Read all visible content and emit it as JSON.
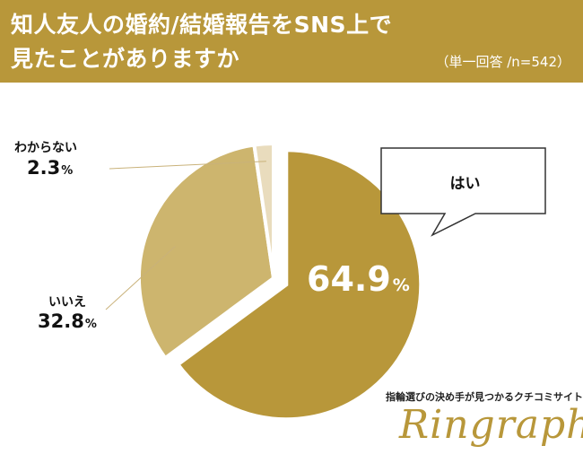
{
  "header": {
    "title_line1": "知人友人の婚約/結婚報告をSNS上で",
    "title_line2": "見たことがありますか",
    "subtitle": "（単一回答 /n=542）"
  },
  "chart_data": {
    "type": "pie",
    "title": "知人友人の婚約/結婚報告をSNS上で見たことがありますか",
    "subtitle": "（単一回答 /n=542）",
    "unit": "%",
    "slices": [
      {
        "label": "はい",
        "value": 64.9,
        "display": "64.9",
        "color": "#b8973a"
      },
      {
        "label": "いいえ",
        "value": 32.8,
        "display": "32.8",
        "color": "#cdb56e"
      },
      {
        "label": "わからない",
        "value": 2.3,
        "display": "2.3",
        "color": "#e9dcbd"
      }
    ],
    "legend": "none"
  },
  "labels": {
    "percent_sign": "%",
    "yes_callout": "はい"
  },
  "colors": {
    "header_bg": "#b8973a",
    "yes": "#b8973a",
    "no": "#cdb56e",
    "unknown": "#e9dcbd",
    "leader_line": "#c9b27a"
  },
  "branding": {
    "tagline": "指輪選びの決め手が見つかるクチコミサイト",
    "logo": "Ringraph"
  }
}
